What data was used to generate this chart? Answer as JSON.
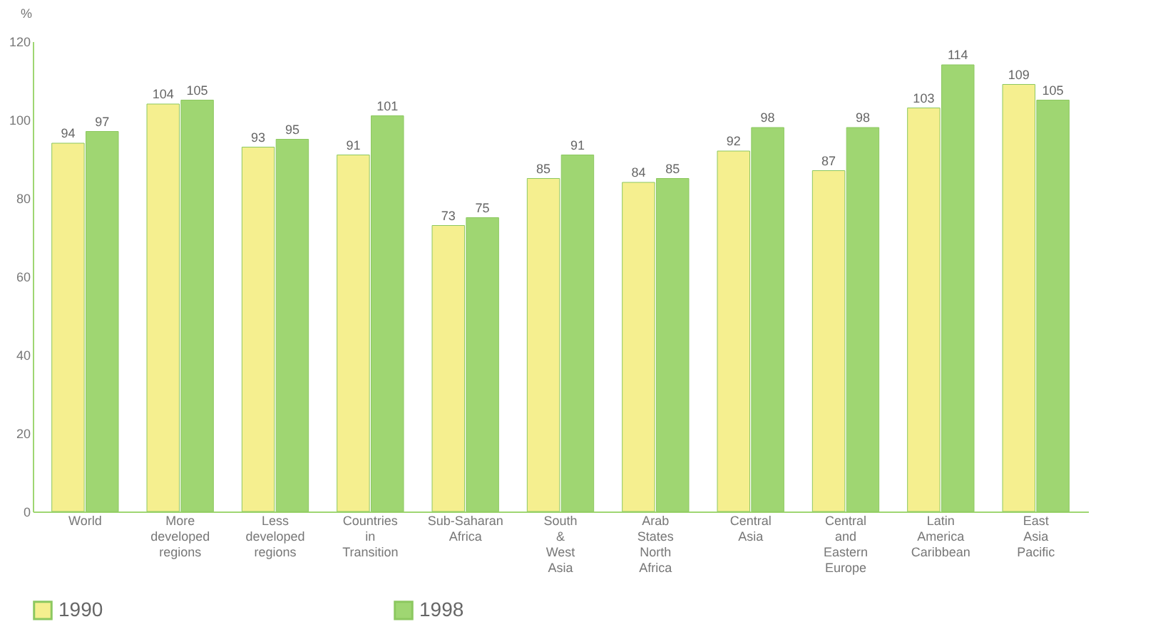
{
  "chart_data": {
    "type": "bar",
    "ylabel": "%",
    "categories": [
      "World",
      "More developed regions",
      "Less developed regions",
      "Countries in Transition",
      "Sub-Saharan Africa",
      "South & West Asia",
      "Arab States North Africa",
      "Central Asia",
      "Central and Eastern Europe",
      "Latin America Caribbean",
      "East Asia Pacific"
    ],
    "series": [
      {
        "name": "1990",
        "color": "#f5ef8f",
        "values": [
          94,
          104,
          93,
          91,
          73,
          85,
          84,
          92,
          87,
          103,
          109
        ]
      },
      {
        "name": "1998",
        "color": "#9fd672",
        "values": [
          97,
          105,
          95,
          101,
          75,
          91,
          85,
          98,
          98,
          114,
          105
        ]
      }
    ],
    "ylim": [
      0,
      120
    ],
    "yticks": [
      0,
      20,
      40,
      60,
      80,
      100,
      120
    ],
    "grid": false,
    "legend": "bottom",
    "data_labels": true
  }
}
